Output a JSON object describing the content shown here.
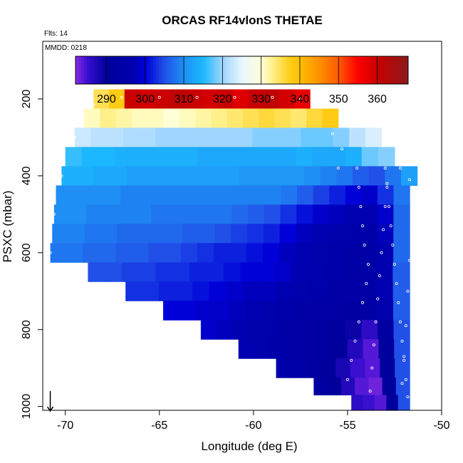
{
  "chart_data": {
    "type": "heatmap",
    "title": "ORCAS RF14vlonS THETAE",
    "annotations": {
      "flights": "Flts: 14",
      "date": "MMDD: 0218"
    },
    "xlabel": "Longitude (deg E)",
    "ylabel": "PSXC (mbar)",
    "xlim": [
      -71.2,
      -50
    ],
    "ylim": [
      1010,
      50
    ],
    "x_ticks": [
      -70,
      -65,
      -60,
      -55,
      -50
    ],
    "x_tick_labels": [
      "-70",
      "-65",
      "-60",
      "-55",
      "-50"
    ],
    "y_ticks": [
      200,
      400,
      600,
      800,
      1000
    ],
    "y_tick_labels": [
      "200",
      "400",
      "600",
      "800",
      "1000"
    ],
    "colorbar": {
      "min": 282,
      "max": 368,
      "ticks": [
        290,
        300,
        310,
        320,
        330,
        340,
        350,
        360
      ],
      "tick_labels": [
        "290",
        "300",
        "310",
        "320",
        "330",
        "340",
        "350",
        "360"
      ],
      "stops": [
        [
          282,
          "#8a2be2"
        ],
        [
          285,
          "#3a0fd0"
        ],
        [
          290,
          "#00009c"
        ],
        [
          297,
          "#0000b0"
        ],
        [
          300,
          "#0000d8"
        ],
        [
          305,
          "#2050e8"
        ],
        [
          310,
          "#1f8ff5"
        ],
        [
          315,
          "#1cb8ff"
        ],
        [
          320,
          "#9fd5ff"
        ],
        [
          325,
          "#e8f6ff"
        ],
        [
          330,
          "#ffffd8"
        ],
        [
          333,
          "#fff08a"
        ],
        [
          337,
          "#ffd020"
        ],
        [
          340,
          "#ffc000"
        ],
        [
          345,
          "#ff9000"
        ],
        [
          350,
          "#ff5a00"
        ],
        [
          355,
          "#ff0000"
        ],
        [
          360,
          "#c80000"
        ],
        [
          368,
          "#8b1a1a"
        ]
      ]
    },
    "rows": [
      {
        "p": 200,
        "lon_min": -68.5,
        "lon_max": -57.0,
        "values": [
          335,
          338,
          360,
          359,
          360,
          361,
          360,
          359,
          360,
          358,
          360,
          361,
          359,
          357
        ]
      },
      {
        "p": 250,
        "lon_min": -69.0,
        "lon_max": -55.5,
        "values": [
          331,
          333,
          332,
          331,
          331,
          330,
          331,
          332,
          333,
          334,
          335,
          336,
          335,
          334,
          336,
          338
        ]
      },
      {
        "p": 300,
        "lon_min": -69.5,
        "lon_max": -53.2,
        "values": [
          323,
          322,
          322,
          321,
          321,
          320,
          320,
          320,
          320,
          320,
          320,
          319,
          319,
          319,
          318,
          318,
          319,
          322,
          324
        ]
      },
      {
        "p": 350,
        "lon_min": -70.0,
        "lon_max": -52.5,
        "values": [
          316,
          315,
          315,
          314,
          314,
          314,
          314,
          314,
          313,
          313,
          313,
          313,
          313,
          313,
          314,
          313,
          313,
          314,
          318,
          319
        ]
      },
      {
        "p": 400,
        "lon_min": -70.2,
        "lon_max": -51.3,
        "values": [
          314,
          314,
          313,
          313,
          312,
          312,
          312,
          312,
          312,
          312,
          312,
          311,
          311,
          311,
          311,
          310,
          309,
          308,
          306,
          305,
          308,
          312
        ]
      },
      {
        "p": 450,
        "lon_min": -70.5,
        "lon_max": -51.7,
        "values": [
          310,
          310,
          310,
          310,
          309,
          309,
          309,
          309,
          309,
          309,
          309,
          309,
          309,
          309,
          308,
          306,
          304,
          302,
          300,
          299,
          303,
          308
        ]
      },
      {
        "p": 500,
        "lon_min": -70.6,
        "lon_max": -51.7,
        "values": [
          310,
          310,
          309,
          309,
          309,
          309,
          308,
          308,
          308,
          308,
          308,
          307,
          306,
          305,
          303,
          301,
          299,
          298,
          297,
          297,
          299,
          307
        ]
      },
      {
        "p": 550,
        "lon_min": -70.7,
        "lon_max": -51.7,
        "values": [
          309,
          309,
          308,
          308,
          307,
          307,
          307,
          307,
          306,
          306,
          305,
          304,
          303,
          302,
          300,
          298,
          297,
          296,
          295,
          295,
          298,
          307
        ]
      },
      {
        "p": 600,
        "lon_min": -70.8,
        "lon_max": -51.7,
        "values": [
          308,
          308,
          307,
          307,
          306,
          306,
          305,
          305,
          304,
          303,
          302,
          302,
          301,
          300,
          298,
          297,
          296,
          295,
          294,
          294,
          297,
          307
        ]
      },
      {
        "p": 650,
        "lon_min": -68.8,
        "lon_max": -51.7,
        "values": [
          305,
          305,
          304,
          304,
          303,
          303,
          302,
          302,
          301,
          300,
          300,
          299,
          297,
          296,
          295,
          294,
          294,
          297,
          306
        ]
      },
      {
        "p": 700,
        "lon_min": -66.8,
        "lon_max": -51.7,
        "values": [
          303,
          303,
          302,
          302,
          301,
          300,
          299,
          298,
          298,
          297,
          296,
          295,
          294,
          294,
          294,
          297,
          306
        ]
      },
      {
        "p": 750,
        "lon_min": -64.8,
        "lon_max": -51.7,
        "values": [
          300,
          300,
          299,
          299,
          298,
          297,
          296,
          295,
          294,
          293,
          293,
          292,
          293,
          296,
          306
        ]
      },
      {
        "p": 800,
        "lon_min": -62.8,
        "lon_max": -51.7,
        "values": [
          299,
          298,
          297,
          296,
          295,
          294,
          293,
          292,
          291,
          289,
          286,
          292,
          305
        ]
      },
      {
        "p": 850,
        "lon_min": -60.8,
        "lon_max": -51.7,
        "values": [
          297,
          296,
          295,
          294,
          293,
          292,
          290,
          287,
          284,
          291,
          305
        ]
      },
      {
        "p": 900,
        "lon_min": -58.8,
        "lon_max": -51.7,
        "values": [
          295,
          294,
          292,
          290,
          288,
          285,
          284,
          291,
          305
        ]
      },
      {
        "p": 950,
        "lon_min": -56.8,
        "lon_max": -51.7,
        "values": [
          292,
          290,
          287,
          284,
          283,
          290,
          305
        ]
      },
      {
        "p": 990,
        "lon_min": -54.8,
        "lon_max": -51.7,
        "values": [
          286,
          285,
          284,
          290,
          305
        ]
      }
    ],
    "flight_track": [
      {
        "lon": -54.5,
        "p": 380
      },
      {
        "lon": -54.4,
        "p": 430
      },
      {
        "lon": -54.3,
        "p": 480
      },
      {
        "lon": -54.2,
        "p": 530
      },
      {
        "lon": -54.1,
        "p": 580
      },
      {
        "lon": -53.9,
        "p": 630
      },
      {
        "lon": -54.0,
        "p": 680
      },
      {
        "lon": -54.2,
        "p": 730
      },
      {
        "lon": -54.4,
        "p": 780
      },
      {
        "lon": -54.6,
        "p": 830
      },
      {
        "lon": -54.8,
        "p": 880
      },
      {
        "lon": -55.0,
        "p": 930
      },
      {
        "lon": -55.0,
        "p": 975
      },
      {
        "lon": -53.0,
        "p": 380
      },
      {
        "lon": -52.9,
        "p": 430
      },
      {
        "lon": -52.8,
        "p": 480
      },
      {
        "lon": -52.7,
        "p": 530
      },
      {
        "lon": -52.6,
        "p": 580
      },
      {
        "lon": -52.5,
        "p": 630
      },
      {
        "lon": -52.4,
        "p": 680
      },
      {
        "lon": -52.3,
        "p": 730
      },
      {
        "lon": -52.2,
        "p": 780
      },
      {
        "lon": -52.1,
        "p": 830
      },
      {
        "lon": -52.0,
        "p": 880
      },
      {
        "lon": -51.9,
        "p": 930
      },
      {
        "lon": -51.8,
        "p": 975
      },
      {
        "lon": -53.8,
        "p": 960
      },
      {
        "lon": -53.7,
        "p": 900
      },
      {
        "lon": -53.6,
        "p": 840
      },
      {
        "lon": -53.5,
        "p": 780
      },
      {
        "lon": -53.4,
        "p": 720
      },
      {
        "lon": -53.3,
        "p": 660
      },
      {
        "lon": -53.2,
        "p": 600
      },
      {
        "lon": -53.1,
        "p": 540
      },
      {
        "lon": -53.0,
        "p": 480
      },
      {
        "lon": -52.9,
        "p": 420
      },
      {
        "lon": -55.5,
        "p": 380
      },
      {
        "lon": -55.3,
        "p": 330
      },
      {
        "lon": -55.8,
        "p": 290
      },
      {
        "lon": -57.5,
        "p": 200
      },
      {
        "lon": -59.0,
        "p": 196
      },
      {
        "lon": -61.0,
        "p": 196
      },
      {
        "lon": -63.0,
        "p": 196
      },
      {
        "lon": -65.0,
        "p": 196
      },
      {
        "lon": -67.0,
        "p": 196
      },
      {
        "lon": -68.5,
        "p": 215
      },
      {
        "lon": -69.5,
        "p": 300
      },
      {
        "lon": -70.2,
        "p": 400
      },
      {
        "lon": -70.6,
        "p": 500
      },
      {
        "lon": -70.8,
        "p": 600
      },
      {
        "lon": -52.2,
        "p": 380
      },
      {
        "lon": -51.7,
        "p": 410
      },
      {
        "lon": -51.6,
        "p": 460
      },
      {
        "lon": -51.6,
        "p": 540
      },
      {
        "lon": -51.7,
        "p": 620
      },
      {
        "lon": -51.8,
        "p": 700
      },
      {
        "lon": -51.9,
        "p": 790
      },
      {
        "lon": -52.0,
        "p": 870
      },
      {
        "lon": -52.1,
        "p": 940
      }
    ],
    "wind_arrow": {
      "lon": -70.8,
      "p_top": 960,
      "p_bottom": 1012
    }
  }
}
